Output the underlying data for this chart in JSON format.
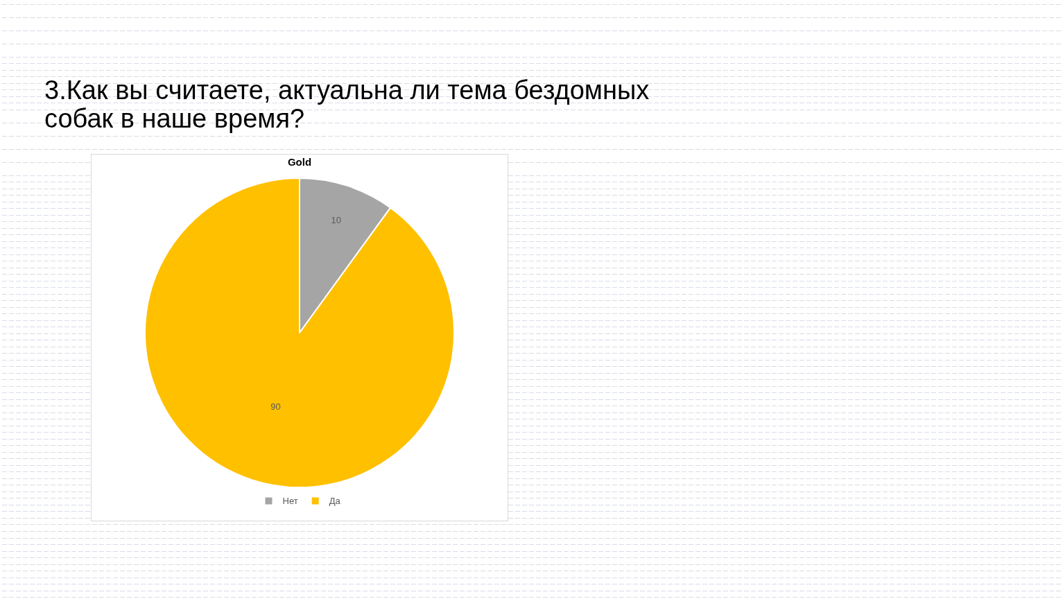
{
  "chart_data": {
    "type": "pie",
    "title": "3.Как вы считаете, актуальна ли тема бездомных собак в наше время?",
    "subtitle": "Gold",
    "categories": [
      "Нет",
      "Да"
    ],
    "values": [
      10,
      90
    ],
    "colors": [
      "#a5a5a5",
      "#ffc000"
    ],
    "data_labels": true,
    "legend": "bottom"
  }
}
